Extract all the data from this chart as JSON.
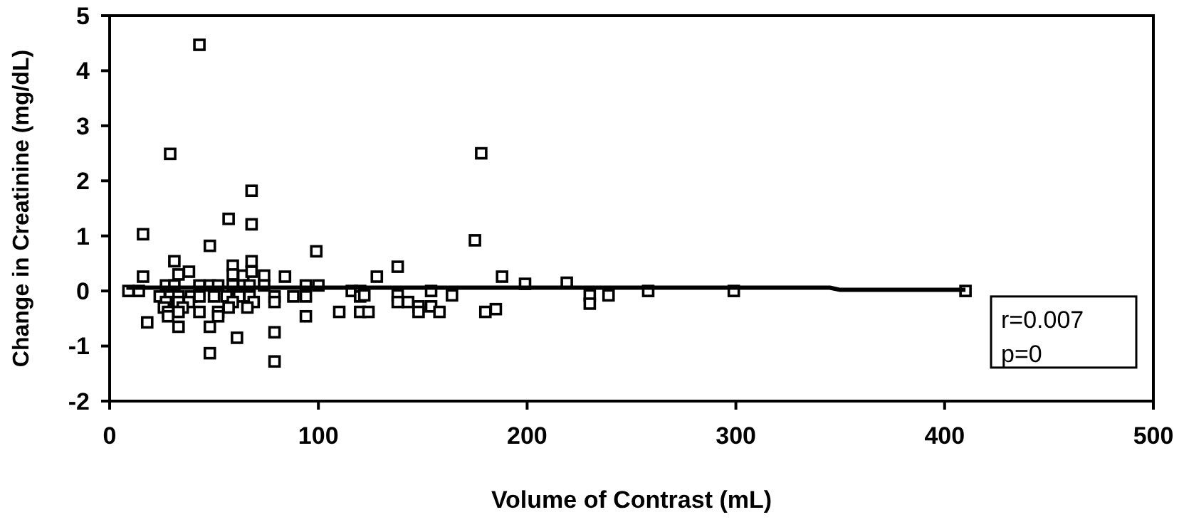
{
  "chart_data": {
    "type": "scatter",
    "xlabel": "Volume of Contrast (mL)",
    "ylabel": "Change in Creatinine (mg/dL)",
    "xlim": [
      0,
      500
    ],
    "ylim": [
      -2,
      5
    ],
    "xticks": [
      0,
      100,
      200,
      300,
      400,
      500
    ],
    "yticks": [
      -2,
      -1,
      0,
      1,
      2,
      3,
      4,
      5
    ],
    "grid": false,
    "marker": "square",
    "annotations": [
      "r=0.007",
      "p=0"
    ],
    "series": [
      {
        "color": "#000000",
        "x": [
          43,
          29,
          68,
          178,
          175,
          16,
          57,
          68,
          48,
          99,
          31,
          68,
          59,
          16,
          84,
          128,
          33,
          38,
          74,
          59,
          64,
          68,
          27,
          31,
          43,
          48,
          52,
          59,
          64,
          67,
          74,
          94,
          100,
          9,
          14,
          116,
          120,
          24,
          29,
          33,
          39,
          43,
          50,
          56,
          62,
          67,
          79,
          88,
          94,
          120,
          27,
          33,
          38,
          59,
          69,
          79,
          26,
          35,
          57,
          66,
          28,
          33,
          43,
          52,
          110,
          120,
          28,
          52,
          94,
          18,
          33,
          48,
          79,
          61,
          48,
          79,
          138,
          188,
          199,
          219,
          122,
          138,
          154,
          164,
          138,
          143,
          148,
          154,
          124,
          148,
          158,
          180,
          185,
          230,
          230,
          239,
          258,
          299,
          410
        ],
        "values": [
          4.47,
          2.49,
          1.82,
          2.5,
          0.92,
          1.03,
          1.31,
          1.21,
          0.82,
          0.72,
          0.54,
          0.54,
          0.46,
          0.26,
          0.26,
          0.26,
          0.3,
          0.35,
          0.28,
          0.3,
          0.28,
          0.35,
          0.1,
          0.1,
          0.1,
          0.1,
          0.1,
          0.1,
          0.1,
          0.1,
          0.1,
          0.1,
          0.1,
          0,
          0,
          0,
          0,
          -0.1,
          -0.1,
          -0.1,
          -0.1,
          -0.1,
          -0.1,
          -0.1,
          -0.1,
          -0.1,
          -0.1,
          -0.1,
          -0.1,
          -0.1,
          -0.2,
          -0.2,
          -0.2,
          -0.2,
          -0.2,
          -0.2,
          -0.3,
          -0.3,
          -0.3,
          -0.3,
          -0.38,
          -0.38,
          -0.38,
          -0.38,
          -0.38,
          -0.38,
          -0.46,
          -0.46,
          -0.46,
          -0.57,
          -0.65,
          -0.65,
          -0.75,
          -0.85,
          -1.13,
          -1.28,
          0.44,
          0.26,
          0.13,
          0.15,
          -0.08,
          -0.08,
          0,
          -0.08,
          -0.2,
          -0.2,
          -0.28,
          -0.28,
          -0.38,
          -0.38,
          -0.38,
          -0.38,
          -0.33,
          -0.08,
          -0.23,
          -0.08,
          0,
          0,
          0
        ]
      },
      {
        "type": "line",
        "color": "#000000",
        "marker": "none",
        "x": [
          8,
          345,
          350,
          410
        ],
        "values": [
          0.06,
          0.06,
          0.02,
          0.02
        ]
      }
    ]
  }
}
